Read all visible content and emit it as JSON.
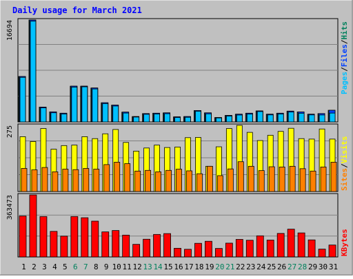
{
  "title": "Daily usage for March 2021",
  "colors": {
    "background": "#c0c0c0",
    "plot": "#c0c0c0",
    "grid": "#808080",
    "title": "#0000ff",
    "hits": "#00805c",
    "files": "#0040ff",
    "pages": "#00c0ff",
    "visits": "#ffff00",
    "sites": "#ff8000",
    "kbytes": "#ff0000",
    "weekend": "#00805c",
    "weekday": "#000000"
  },
  "legends": {
    "top": [
      "Pages",
      "Files",
      "Hits"
    ],
    "middle": [
      "Sites",
      "Visits"
    ],
    "bottom": [
      "KBytes"
    ]
  },
  "chart_data": [
    {
      "type": "bar",
      "title": "Daily usage for March 2021",
      "ylabel": "16694",
      "ymax": 16694,
      "categories": [
        "1",
        "2",
        "3",
        "4",
        "5",
        "6",
        "7",
        "8",
        "9",
        "10",
        "11",
        "12",
        "13",
        "14",
        "15",
        "16",
        "17",
        "18",
        "19",
        "20",
        "21",
        "22",
        "23",
        "24",
        "25",
        "26",
        "27",
        "28",
        "29",
        "30",
        "31"
      ],
      "weekend_days": [
        "6",
        "7",
        "13",
        "14",
        "20",
        "21",
        "27",
        "28"
      ],
      "series": [
        {
          "name": "Hits",
          "values": [
            7440,
            16694,
            2430,
            1650,
            1430,
            5860,
            5860,
            5560,
            3140,
            2760,
            1610,
            880,
            1370,
            1430,
            1490,
            830,
            880,
            1870,
            1490,
            720,
            1070,
            1270,
            1430,
            1810,
            1270,
            1430,
            1770,
            1640,
            1270,
            1370,
            1910
          ]
        },
        {
          "name": "Files",
          "values": [
            7440,
            16694,
            2430,
            1650,
            1430,
            5860,
            5860,
            5560,
            3140,
            2760,
            1610,
            880,
            1370,
            1430,
            1490,
            830,
            880,
            1870,
            1490,
            720,
            1070,
            1270,
            1430,
            1810,
            1270,
            1430,
            1770,
            1640,
            1270,
            1370,
            1910
          ]
        },
        {
          "name": "Pages",
          "values": [
            7300,
            16500,
            2300,
            1500,
            1300,
            5700,
            5750,
            5400,
            3000,
            2600,
            1450,
            800,
            1250,
            1300,
            1350,
            720,
            760,
            1750,
            1330,
            650,
            960,
            1130,
            1280,
            1700,
            1150,
            1300,
            1620,
            1420,
            1150,
            1140,
            1450
          ]
        }
      ]
    },
    {
      "type": "bar",
      "ylabel": "275",
      "ymax": 275,
      "categories": [
        "1",
        "2",
        "3",
        "4",
        "5",
        "6",
        "7",
        "8",
        "9",
        "10",
        "11",
        "12",
        "13",
        "14",
        "15",
        "16",
        "17",
        "18",
        "19",
        "20",
        "21",
        "22",
        "23",
        "24",
        "25",
        "26",
        "27",
        "28",
        "29",
        "30",
        "31"
      ],
      "series": [
        {
          "name": "Visits",
          "values": [
            228,
            208,
            262,
            176,
            191,
            193,
            228,
            220,
            240,
            258,
            204,
            168,
            181,
            193,
            183,
            185,
            224,
            225,
            105,
            186,
            262,
            275,
            246,
            212,
            234,
            250,
            263,
            220,
            218,
            260,
            218
          ]
        },
        {
          "name": "Sites",
          "values": [
            96,
            90,
            100,
            82,
            93,
            91,
            96,
            93,
            112,
            122,
            116,
            85,
            88,
            82,
            88,
            93,
            86,
            74,
            105,
            66,
            94,
            124,
            105,
            87,
            103,
            102,
            105,
            95,
            85,
            102,
            122
          ]
        }
      ]
    },
    {
      "type": "bar",
      "ylabel": "363473",
      "ymax": 363473,
      "categories": [
        "1",
        "2",
        "3",
        "4",
        "5",
        "6",
        "7",
        "8",
        "9",
        "10",
        "11",
        "12",
        "13",
        "14",
        "15",
        "16",
        "17",
        "18",
        "19",
        "20",
        "21",
        "22",
        "23",
        "24",
        "25",
        "26",
        "27",
        "28",
        "29",
        "30",
        "31"
      ],
      "series": [
        {
          "name": "KBytes",
          "values": [
            240000,
            363473,
            237000,
            150000,
            122000,
            237000,
            230000,
            210000,
            147000,
            155000,
            128000,
            74000,
            104000,
            132000,
            137000,
            51000,
            45000,
            80000,
            92000,
            50000,
            81000,
            103000,
            98000,
            124000,
            99000,
            138000,
            163000,
            141000,
            100000,
            46000,
            70000
          ]
        }
      ]
    }
  ]
}
